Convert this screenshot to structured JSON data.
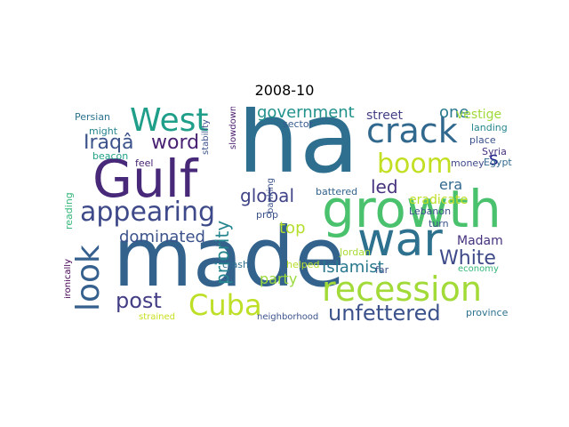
{
  "title": "2008-10",
  "words": [
    {
      "text": "ha",
      "color": "#2e6e8e"
    },
    {
      "text": "made",
      "color": "#33638d"
    },
    {
      "text": "growth",
      "color": "#4ac16d"
    },
    {
      "text": "Gulf",
      "color": "#482878"
    },
    {
      "text": "war",
      "color": "#2d718e"
    },
    {
      "text": "recession",
      "color": "#a2da37"
    },
    {
      "text": "West",
      "color": "#1f9e89"
    },
    {
      "text": "crack",
      "color": "#31688e"
    },
    {
      "text": "appearing",
      "color": "#3e4989"
    },
    {
      "text": "look",
      "color": "#355f8d"
    },
    {
      "text": "Cuba",
      "color": "#bddf26"
    },
    {
      "text": "boom",
      "color": "#c2df23"
    },
    {
      "text": "unfettered",
      "color": "#3b528b"
    },
    {
      "text": "Iraqâ",
      "color": "#3b528b"
    },
    {
      "text": "word",
      "color": "#482173"
    },
    {
      "text": "post",
      "color": "#433e85"
    },
    {
      "text": "White",
      "color": "#3e4a89"
    },
    {
      "text": "global",
      "color": "#414487"
    },
    {
      "text": "government",
      "color": "#21918c"
    },
    {
      "text": "dominated",
      "color": "#3b528b"
    },
    {
      "text": "led",
      "color": "#46327e"
    },
    {
      "text": "priority",
      "color": "#25858e"
    },
    {
      "text": "Islamist",
      "color": "#2a788e"
    },
    {
      "text": "party",
      "color": "#9bd93c"
    },
    {
      "text": "top",
      "color": "#b5de2b"
    },
    {
      "text": "one",
      "color": "#2a788e"
    },
    {
      "text": "s",
      "color": "#25258e"
    },
    {
      "text": "street",
      "color": "#433e85"
    },
    {
      "text": "era",
      "color": "#31688e"
    },
    {
      "text": "Madam",
      "color": "#46327e"
    },
    {
      "text": "eradicate",
      "color": "#bddf26"
    },
    {
      "text": "vestige",
      "color": "#a0da39"
    },
    {
      "text": "Persian",
      "color": "#2c728e"
    },
    {
      "text": "might",
      "color": "#25858e"
    },
    {
      "text": "beacon",
      "color": "#1fa188"
    },
    {
      "text": "feel",
      "color": "#482475"
    },
    {
      "text": "reading",
      "color": "#35b779"
    },
    {
      "text": "ironically",
      "color": "#440154"
    },
    {
      "text": "stability",
      "color": "#3b528b"
    },
    {
      "text": "slowdown",
      "color": "#481a6c"
    },
    {
      "text": "sector",
      "color": "#365c8d"
    },
    {
      "text": "banking",
      "color": "#3b528b"
    },
    {
      "text": "prop",
      "color": "#3b528b"
    },
    {
      "text": "helped",
      "color": "#b8de29"
    },
    {
      "text": "crash",
      "color": "#2e6e8e"
    },
    {
      "text": "battered",
      "color": "#33638d"
    },
    {
      "text": "Lebanon",
      "color": "#3b528b"
    },
    {
      "text": "turn",
      "color": "#3b528b"
    },
    {
      "text": "landing",
      "color": "#25858e"
    },
    {
      "text": "place",
      "color": "#3b528b"
    },
    {
      "text": "Syria",
      "color": "#46327e"
    },
    {
      "text": "Egypt",
      "color": "#31688e"
    },
    {
      "text": "money",
      "color": "#3e4989"
    },
    {
      "text": "Jordan",
      "color": "#a8db34"
    },
    {
      "text": "far",
      "color": "#3b528b"
    },
    {
      "text": "economy",
      "color": "#35b779"
    },
    {
      "text": "neighborhood",
      "color": "#3b528b"
    },
    {
      "text": "strained",
      "color": "#c8e020"
    },
    {
      "text": "province",
      "color": "#2c728e"
    }
  ]
}
